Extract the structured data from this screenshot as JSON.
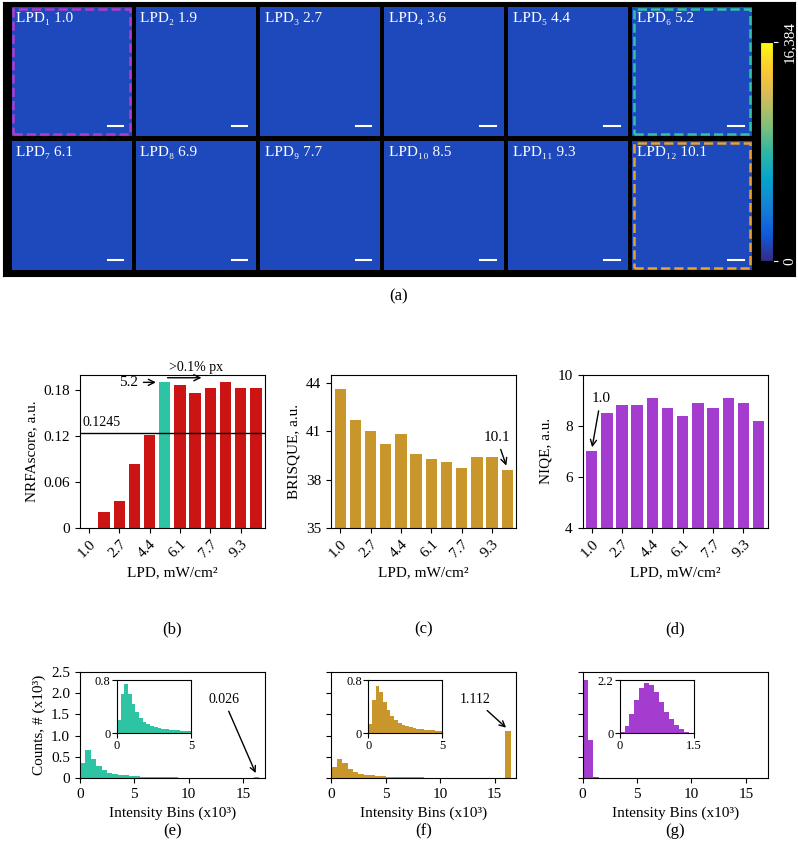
{
  "chart_data": [
    {
      "type": "bar",
      "subtitle": "(b)",
      "xlabel": "LPD, mW/cm²",
      "ylabel": "NRFAscore, a.u.",
      "categories": [
        "1.0",
        null,
        "2.7",
        null,
        "4.4",
        null,
        "6.1",
        null,
        "7.7",
        null,
        "9.3",
        null
      ],
      "values": [
        0.0,
        0.021,
        0.035,
        0.083,
        0.121,
        0.19,
        0.186,
        0.176,
        0.183,
        0.19,
        0.182,
        0.183
      ],
      "colors": [
        "#cc1414",
        "#cc1414",
        "#cc1414",
        "#cc1414",
        "#cc1414",
        "#2ec4a3",
        "#cc1414",
        "#cc1414",
        "#cc1414",
        "#cc1414",
        "#cc1414",
        "#cc1414"
      ],
      "ylim": [
        0,
        0.2
      ],
      "yticks": [
        0,
        0.06,
        0.12,
        0.18
      ],
      "reference_line": 0.1245,
      "annotations": [
        "5.2",
        ">0.1% px"
      ]
    },
    {
      "type": "bar",
      "subtitle": "(c)",
      "xlabel": "LPD, mW/cm²",
      "ylabel": "BRISQUE, a.u.",
      "categories": [
        "1.0",
        null,
        "2.7",
        null,
        "4.4",
        null,
        "6.1",
        null,
        "7.7",
        null,
        "9.3",
        null
      ],
      "values": [
        43.6,
        41.7,
        41.0,
        40.2,
        40.8,
        39.6,
        39.3,
        39.1,
        38.7,
        39.4,
        39.4,
        38.6
      ],
      "color": "#c9962c",
      "ylim": [
        35,
        44.5
      ],
      "yticks": [
        35,
        38,
        41,
        44
      ],
      "annotations": [
        "10.1"
      ]
    },
    {
      "type": "bar",
      "subtitle": "(d)",
      "xlabel": "LPD, mW/cm²",
      "ylabel": "NIQE, a.u.",
      "categories": [
        "1.0",
        null,
        "2.7",
        null,
        "4.4",
        null,
        "6.1",
        null,
        "7.7",
        null,
        "9.3",
        null
      ],
      "values": [
        7.0,
        8.5,
        8.8,
        8.8,
        9.1,
        8.7,
        8.4,
        8.9,
        8.7,
        9.1,
        8.9,
        8.2
      ],
      "color": "#a43cd0",
      "ylim": [
        4,
        10
      ],
      "yticks": [
        4,
        6,
        8,
        10
      ],
      "annotations": [
        "1.0"
      ]
    },
    {
      "type": "histogram",
      "subtitle": "(e)",
      "xlabel": "Intensity Bins (x10³)",
      "ylabel": "Counts, # (x10³)",
      "bins": [
        0,
        0.5,
        1,
        1.5,
        2,
        2.5,
        3,
        3.5,
        4,
        4.5,
        5,
        5.5,
        6,
        6.5,
        7,
        7.5,
        8,
        8.5,
        9,
        9.5,
        10,
        10.5,
        11,
        11.5,
        12,
        12.5,
        13,
        13.5,
        14,
        14.5,
        15,
        15.5,
        16,
        16.5
      ],
      "counts": [
        0.35,
        0.65,
        0.45,
        0.28,
        0.18,
        0.12,
        0.09,
        0.07,
        0.06,
        0.05,
        0.04,
        0.035,
        0.03,
        0.025,
        0.02,
        0.018,
        0.015,
        0.012,
        0.01,
        0.008,
        0.007,
        0.006,
        0.005,
        0.004,
        0.004,
        0.003,
        0.003,
        0.002,
        0.002,
        0.002,
        0.001,
        0.001,
        0.026
      ],
      "color": "#2ec4a3",
      "xlim": [
        0,
        17
      ],
      "xticks": [
        0,
        5,
        10,
        15
      ],
      "ylim": [
        0,
        2.5
      ],
      "yticks": [
        0,
        0.5,
        1.0,
        1.5,
        2.0,
        2.5
      ],
      "annotations": [
        "0.026"
      ],
      "inset": {
        "bins": [
          0,
          0.25,
          0.5,
          0.75,
          1,
          1.25,
          1.5,
          1.75,
          2,
          2.25,
          2.5,
          2.75,
          3,
          3.25,
          3.5,
          3.75,
          4,
          4.25,
          4.5,
          4.75,
          5
        ],
        "counts": [
          0.2,
          0.6,
          0.75,
          0.6,
          0.45,
          0.32,
          0.24,
          0.18,
          0.14,
          0.11,
          0.09,
          0.08,
          0.07,
          0.06,
          0.055,
          0.05,
          0.045,
          0.04,
          0.035,
          0.03
        ],
        "xlim": [
          0,
          5
        ],
        "xticks": [
          0,
          5
        ],
        "ylim": [
          0,
          0.8
        ],
        "yticks": [
          0,
          0.8
        ]
      }
    },
    {
      "type": "histogram",
      "subtitle": "(f)",
      "xlabel": "Intensity Bins (x10³)",
      "tick_labels": "x",
      "bins": [
        0,
        0.5,
        1,
        1.5,
        2,
        2.5,
        3,
        3.5,
        4,
        4.5,
        5,
        5.5,
        6,
        6.5,
        7,
        7.5,
        8,
        8.5,
        9,
        9.5,
        10,
        10.5,
        11,
        11.5,
        12,
        12.5,
        13,
        13.5,
        14,
        14.5,
        15,
        15.5,
        16,
        16.5
      ],
      "counts": [
        0.25,
        0.45,
        0.35,
        0.22,
        0.15,
        0.1,
        0.08,
        0.06,
        0.05,
        0.04,
        0.035,
        0.03,
        0.025,
        0.02,
        0.018,
        0.015,
        0.013,
        0.011,
        0.01,
        0.009,
        0.008,
        0.007,
        0.006,
        0.005,
        0.005,
        0.004,
        0.004,
        0.003,
        0.003,
        0.003,
        0.002,
        0.002,
        1.112
      ],
      "color": "#c9962c",
      "xlim": [
        0,
        17
      ],
      "xticks": [
        0,
        5,
        10,
        15
      ],
      "ylim": [
        0,
        2.5
      ],
      "yticks": [
        0,
        0.5,
        1.0,
        1.5,
        2.0,
        2.5
      ],
      "annotations": [
        "1.112"
      ],
      "inset": {
        "bins": [
          0,
          0.25,
          0.5,
          0.75,
          1,
          1.25,
          1.5,
          1.75,
          2,
          2.25,
          2.5,
          2.75,
          3,
          3.25,
          3.5,
          3.75,
          4,
          4.25,
          4.5,
          4.75,
          5
        ],
        "counts": [
          0.15,
          0.5,
          0.72,
          0.62,
          0.48,
          0.36,
          0.27,
          0.2,
          0.16,
          0.13,
          0.11,
          0.09,
          0.08,
          0.07,
          0.06,
          0.055,
          0.05,
          0.045,
          0.04,
          0.035
        ],
        "xlim": [
          0,
          5
        ],
        "xticks": [
          0,
          5
        ],
        "ylim": [
          0,
          0.8
        ],
        "yticks": [
          0,
          0.8
        ]
      }
    },
    {
      "type": "histogram",
      "subtitle": "(g)",
      "xlabel": "Intensity Bins (x10³)",
      "tick_labels": "x",
      "bins": [
        0,
        0.5,
        1,
        1.5,
        2,
        2.5,
        3,
        3.5,
        4,
        4.5,
        5,
        5.5,
        6,
        6.5,
        7,
        7.5,
        8,
        8.5,
        9,
        9.5,
        10,
        10.5,
        11,
        11.5,
        12,
        12.5,
        13,
        13.5,
        14,
        14.5,
        15,
        15.5,
        16,
        16.5
      ],
      "counts": [
        2.3,
        0.9,
        0.02,
        0,
        0,
        0,
        0,
        0,
        0,
        0,
        0,
        0,
        0,
        0,
        0,
        0,
        0,
        0,
        0,
        0,
        0,
        0,
        0,
        0,
        0,
        0,
        0,
        0,
        0,
        0,
        0,
        0,
        0
      ],
      "color": "#a43cd0",
      "xlim": [
        0,
        17
      ],
      "xticks": [
        0,
        5,
        10,
        15
      ],
      "ylim": [
        0,
        2.5
      ],
      "yticks": [
        0,
        0.5,
        1.0,
        1.5,
        2.0,
        2.5
      ],
      "inset": {
        "bins": [
          0,
          0.1,
          0.2,
          0.3,
          0.4,
          0.5,
          0.6,
          0.7,
          0.8,
          0.9,
          1.0,
          1.1,
          1.2,
          1.3,
          1.4,
          1.5
        ],
        "counts": [
          0.05,
          0.3,
          0.8,
          1.4,
          1.9,
          2.1,
          2.0,
          1.7,
          1.3,
          0.9,
          0.6,
          0.35,
          0.18,
          0.08,
          0.03
        ],
        "xlim": [
          0,
          1.5
        ],
        "xticks": [
          0,
          1.5
        ],
        "ylim": [
          0,
          2.2
        ],
        "yticks": [
          0,
          2.2
        ]
      }
    }
  ],
  "images": {
    "subtitle": "(a)",
    "panels": [
      {
        "label": "LPD₁ 1.0",
        "highlight": "#b03cc8"
      },
      {
        "label": "LPD₂ 1.9"
      },
      {
        "label": "LPD₃ 2.7"
      },
      {
        "label": "LPD₄ 3.6"
      },
      {
        "label": "LPD₅ 4.4"
      },
      {
        "label": "LPD₆ 5.2",
        "highlight": "#2ec4a3"
      },
      {
        "label": "LPD₇ 6.1"
      },
      {
        "label": "LPD₈ 6.9"
      },
      {
        "label": "LPD₉ 7.7"
      },
      {
        "label": "LPD₁₀ 8.5"
      },
      {
        "label": "LPD₁₁ 9.3"
      },
      {
        "label": "LPD₁₂ 10.1",
        "highlight": "#e8a030"
      }
    ],
    "colorbar": {
      "range": [
        0,
        16384
      ],
      "ticks": [
        0,
        {
          "value": 16384,
          "label": "16,384"
        }
      ]
    }
  }
}
